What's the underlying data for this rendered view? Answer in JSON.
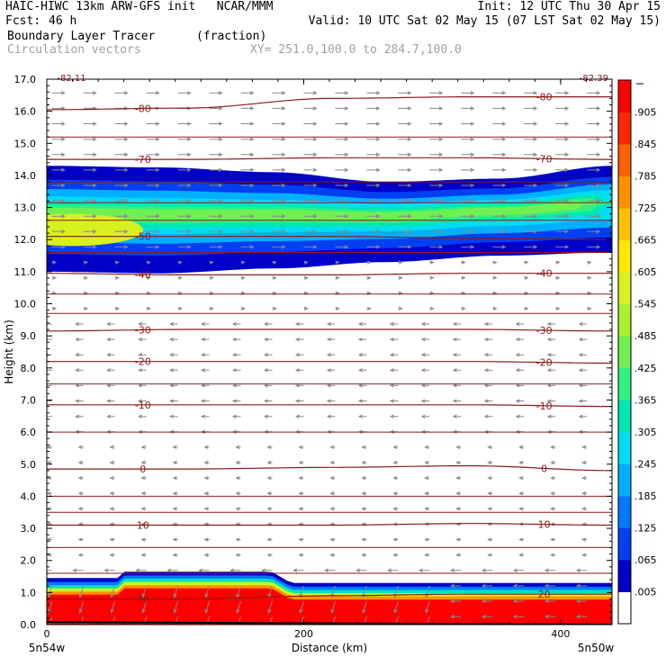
{
  "header": {
    "line1_left": "HAIC-HIWC 13km ARW-GFS init   NCAR/MMM",
    "line1_right": "Init: 12 UTC Thu 30 Apr 15",
    "fcst_label": "Fcst:",
    "fcst_value": "46 h",
    "valid": "Valid: 10 UTC Sat 02 May 15 (07 LST Sat 02 May 15)",
    "field": "Boundary Layer Tracer",
    "units": "(fraction)",
    "vectors": "Circulation vectors",
    "xy": "XY= 251.0,100.0 to 284.7,100.0"
  },
  "chart_data": {
    "type": "heatmap",
    "title": "Boundary Layer Tracer",
    "units": "(fraction)",
    "xlabel": "Distance (km)",
    "ylabel": "Height (km)",
    "xlim": [
      0,
      440
    ],
    "ylim": [
      0,
      17
    ],
    "x_ticks": [
      0,
      200,
      400
    ],
    "x_tick_labels": [
      "0",
      "200",
      "400"
    ],
    "y_ticks": [
      0,
      1,
      2,
      3,
      4,
      5,
      6,
      7,
      8,
      9,
      10,
      11,
      12,
      13,
      14,
      15,
      16,
      17
    ],
    "y_tick_labels": [
      "0.0",
      "1.0",
      "2.0",
      "3.0",
      "4.0",
      "5.0",
      "6.0",
      "7.0",
      "8.0",
      "9.0",
      "10.0",
      "11.0",
      "12.0",
      "13.0",
      "14.0",
      "15.0",
      "16.0",
      "17.0"
    ],
    "x_end_labels": [
      "5n54w",
      "5n50w"
    ],
    "colorbar": {
      "labels": [
        ".005",
        ".065",
        ".125",
        ".185",
        ".245",
        ".305",
        ".365",
        ".425",
        ".485",
        ".545",
        ".605",
        ".665",
        ".725",
        ".785",
        ".845",
        ".905"
      ],
      "colors": [
        "#ffffff",
        "#0000c8",
        "#0040f0",
        "#0078ff",
        "#00b0ff",
        "#00dcf0",
        "#00e6b4",
        "#30f080",
        "#70f050",
        "#a8f030",
        "#d8f020",
        "#ffe800",
        "#ffc000",
        "#ff9000",
        "#ff6000",
        "#ff2800",
        "#ff0000"
      ]
    },
    "isotherms": [
      {
        "value": -80,
        "label": "-80",
        "heights": [
          16.05,
          16.1,
          16.4,
          16.45,
          16.45
        ]
      },
      {
        "value": -70,
        "label": "-70",
        "heights": [
          14.5,
          14.5,
          14.55,
          14.55,
          14.5
        ]
      },
      {
        "value": -50,
        "label": "-50",
        "heights": [
          12.1,
          12.1,
          12.1,
          12.05,
          12.0
        ]
      },
      {
        "value": -40,
        "label": "-40",
        "heights": [
          10.95,
          10.9,
          10.9,
          10.95,
          10.95
        ]
      },
      {
        "value": -30,
        "label": "-30",
        "heights": [
          9.15,
          9.2,
          9.2,
          9.2,
          9.15
        ]
      },
      {
        "value": -20,
        "label": "-20",
        "heights": [
          8.2,
          8.2,
          8.2,
          8.2,
          8.15
        ]
      },
      {
        "value": -10,
        "label": "-10",
        "heights": [
          6.85,
          6.85,
          6.85,
          6.85,
          6.8
        ]
      },
      {
        "value": 0,
        "label": "0",
        "heights": [
          4.85,
          4.85,
          4.9,
          4.95,
          4.8
        ]
      },
      {
        "value": 10,
        "label": "10",
        "heights": [
          3.1,
          3.1,
          3.1,
          3.15,
          3.1
        ]
      },
      {
        "value": 20,
        "label": "20",
        "heights": [
          0.8,
          0.8,
          0.9,
          0.95,
          0.95
        ]
      }
    ],
    "extra_isotherm_heights": [
      15.2,
      13.15,
      13.8,
      12.6,
      11.6,
      10.3,
      9.7,
      7.5,
      6.0,
      4.0,
      3.5,
      2.4,
      1.6
    ],
    "corner_labels": [
      "-82.11",
      "-82.39"
    ]
  }
}
